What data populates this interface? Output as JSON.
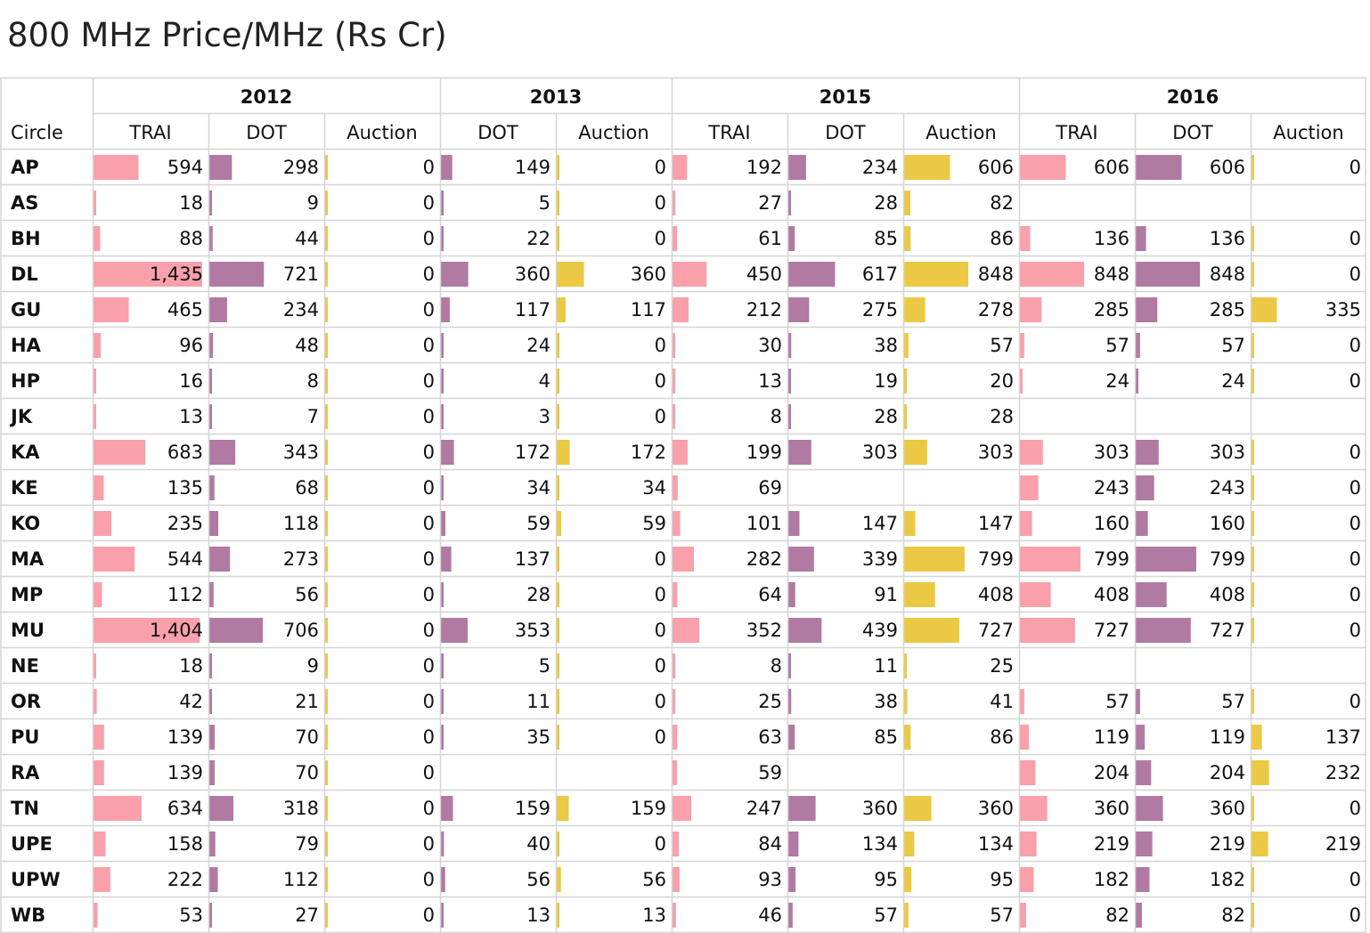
{
  "title": "800 MHz Price/MHz (Rs Cr)",
  "colors": {
    "TRAI": "#f9a0aa",
    "DOT": "#b07aa3",
    "Auction": "#ebc944",
    "grid": "#d5d5d5"
  },
  "chart_data": {
    "type": "table",
    "title": "800 MHz Price/MHz (Rs Cr)",
    "row_header": "Circle",
    "years": [
      {
        "year": "2012",
        "measures": [
          "TRAI",
          "DOT",
          "Auction"
        ]
      },
      {
        "year": "2013",
        "measures": [
          "DOT",
          "Auction"
        ]
      },
      {
        "year": "2015",
        "measures": [
          "TRAI",
          "DOT",
          "Auction"
        ]
      },
      {
        "year": "2016",
        "measures": [
          "TRAI",
          "DOT",
          "Auction"
        ]
      }
    ],
    "rows": [
      {
        "circle": "AP",
        "values": [
          594,
          298,
          0,
          149,
          0,
          192,
          234,
          606,
          606,
          606,
          0
        ]
      },
      {
        "circle": "AS",
        "values": [
          18,
          9,
          0,
          5,
          0,
          27,
          28,
          82,
          null,
          null,
          null
        ]
      },
      {
        "circle": "BH",
        "values": [
          88,
          44,
          0,
          22,
          0,
          61,
          85,
          86,
          136,
          136,
          0
        ]
      },
      {
        "circle": "DL",
        "values": [
          1435,
          721,
          0,
          360,
          360,
          450,
          617,
          848,
          848,
          848,
          0
        ]
      },
      {
        "circle": "GU",
        "values": [
          465,
          234,
          0,
          117,
          117,
          212,
          275,
          278,
          285,
          285,
          335
        ]
      },
      {
        "circle": "HA",
        "values": [
          96,
          48,
          0,
          24,
          0,
          30,
          38,
          57,
          57,
          57,
          0
        ]
      },
      {
        "circle": "HP",
        "values": [
          16,
          8,
          0,
          4,
          0,
          13,
          19,
          20,
          24,
          24,
          0
        ]
      },
      {
        "circle": "JK",
        "values": [
          13,
          7,
          0,
          3,
          0,
          8,
          28,
          28,
          null,
          null,
          null
        ]
      },
      {
        "circle": "KA",
        "values": [
          683,
          343,
          0,
          172,
          172,
          199,
          303,
          303,
          303,
          303,
          0
        ]
      },
      {
        "circle": "KE",
        "values": [
          135,
          68,
          0,
          34,
          34,
          69,
          null,
          null,
          243,
          243,
          0
        ]
      },
      {
        "circle": "KO",
        "values": [
          235,
          118,
          0,
          59,
          59,
          101,
          147,
          147,
          160,
          160,
          0
        ]
      },
      {
        "circle": "MA",
        "values": [
          544,
          273,
          0,
          137,
          0,
          282,
          339,
          799,
          799,
          799,
          0
        ]
      },
      {
        "circle": "MP",
        "values": [
          112,
          56,
          0,
          28,
          0,
          64,
          91,
          408,
          408,
          408,
          0
        ]
      },
      {
        "circle": "MU",
        "values": [
          1404,
          706,
          0,
          353,
          0,
          352,
          439,
          727,
          727,
          727,
          0
        ]
      },
      {
        "circle": "NE",
        "values": [
          18,
          9,
          0,
          5,
          0,
          8,
          11,
          25,
          null,
          null,
          null
        ]
      },
      {
        "circle": "OR",
        "values": [
          42,
          21,
          0,
          11,
          0,
          25,
          38,
          41,
          57,
          57,
          0
        ]
      },
      {
        "circle": "PU",
        "values": [
          139,
          70,
          0,
          35,
          0,
          63,
          85,
          86,
          119,
          119,
          137
        ]
      },
      {
        "circle": "RA",
        "values": [
          139,
          70,
          0,
          null,
          null,
          59,
          null,
          null,
          204,
          204,
          232
        ]
      },
      {
        "circle": "TN",
        "values": [
          634,
          318,
          0,
          159,
          159,
          247,
          360,
          360,
          360,
          360,
          0
        ]
      },
      {
        "circle": "UPE",
        "values": [
          158,
          79,
          0,
          40,
          0,
          84,
          134,
          134,
          219,
          219,
          219
        ]
      },
      {
        "circle": "UPW",
        "values": [
          222,
          112,
          0,
          56,
          56,
          93,
          95,
          95,
          182,
          182,
          0
        ]
      },
      {
        "circle": "WB",
        "values": [
          53,
          27,
          0,
          13,
          13,
          46,
          57,
          57,
          82,
          82,
          0
        ]
      }
    ]
  }
}
